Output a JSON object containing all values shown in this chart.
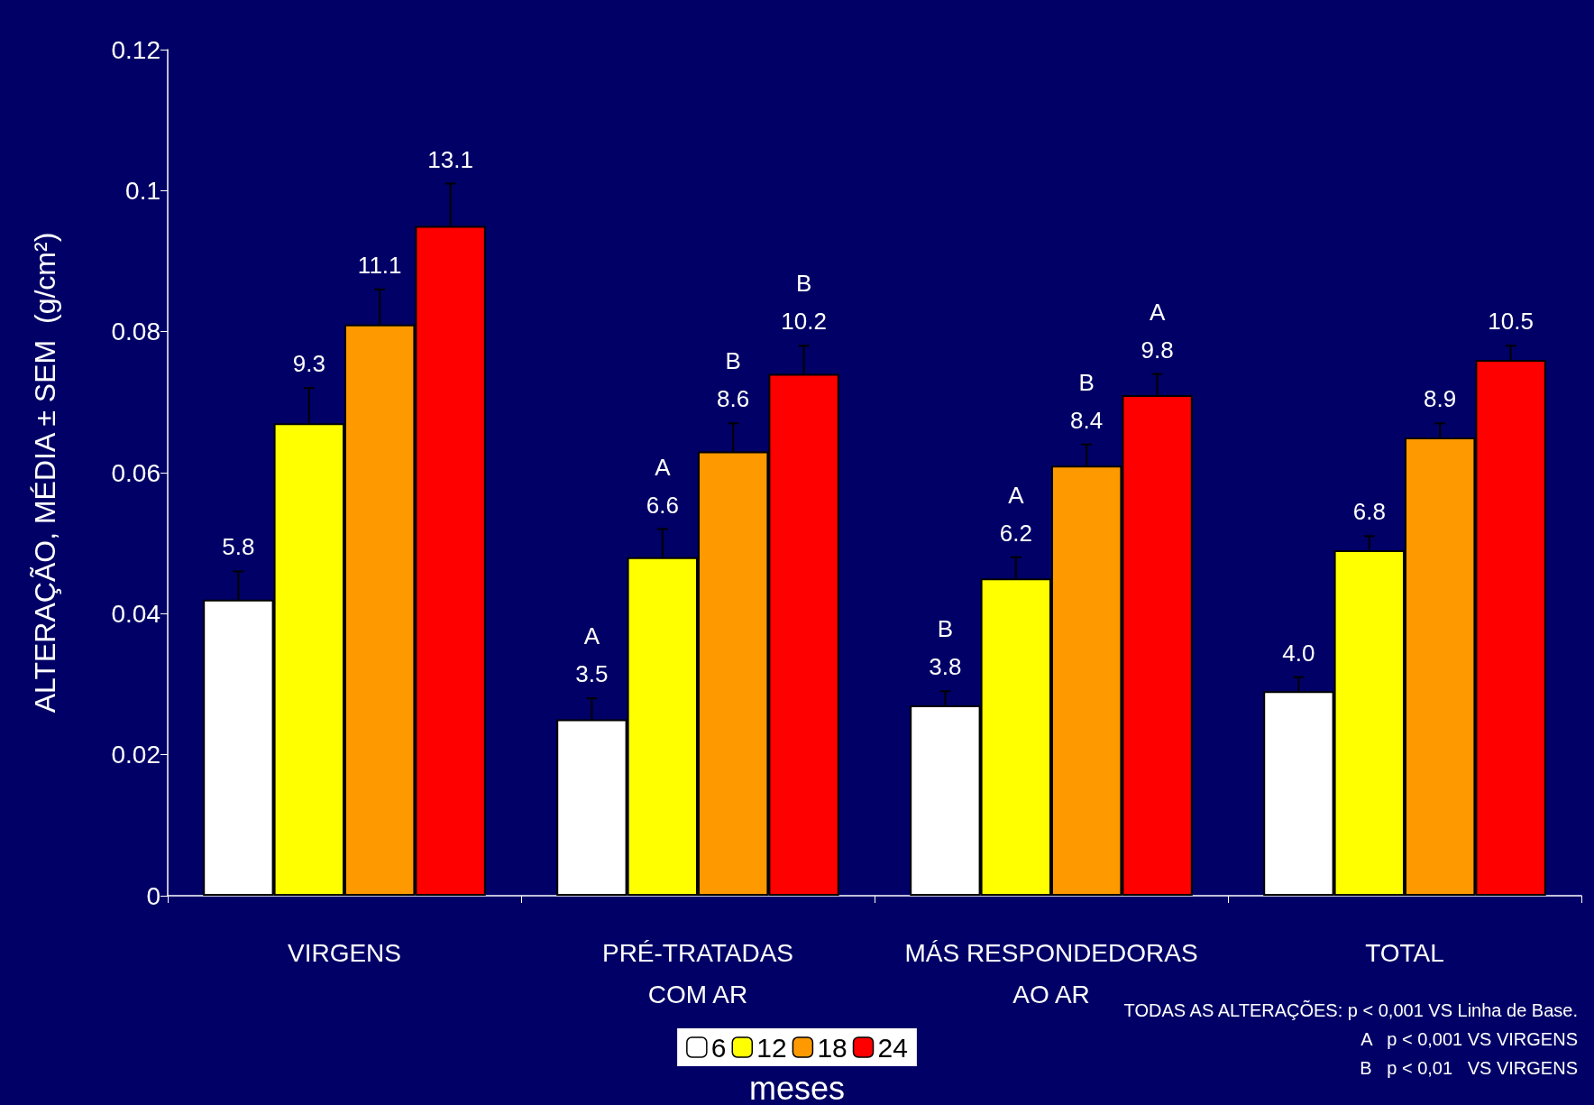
{
  "chart_data": {
    "type": "bar",
    "ylabel": "ALTERAÇÃO, MÉDIA ± SEM  (g/cm²)",
    "legend_title": "meses",
    "categories": [
      "VIRGENS",
      "PRÉ-TRATADAS\nCOM AR",
      "MÁS RESPONDEDORAS\nAO AR",
      "TOTAL"
    ],
    "series": [
      {
        "name": "6",
        "color": "#ffffff",
        "values": [
          0.042,
          0.025,
          0.027,
          0.029
        ],
        "errors": [
          [
            0.042,
            0.046
          ],
          [
            0.025,
            0.028
          ],
          [
            0.027,
            0.029
          ],
          [
            0.029,
            0.031
          ]
        ]
      },
      {
        "name": "12",
        "color": "#ffff00",
        "values": [
          0.067,
          0.048,
          0.045,
          0.049
        ],
        "errors": [
          [
            0.067,
            0.072
          ],
          [
            0.048,
            0.052
          ],
          [
            0.045,
            0.048
          ],
          [
            0.049,
            0.051
          ]
        ]
      },
      {
        "name": "18",
        "color": "#ff9900",
        "values": [
          0.081,
          0.063,
          0.061,
          0.065
        ],
        "errors": [
          [
            0.081,
            0.086
          ],
          [
            0.063,
            0.067
          ],
          [
            0.061,
            0.064
          ],
          [
            0.065,
            0.067
          ]
        ]
      },
      {
        "name": "24",
        "color": "#ff0000",
        "values": [
          0.095,
          0.074,
          0.071,
          0.076
        ],
        "errors": [
          [
            0.095,
            0.101
          ],
          [
            0.074,
            0.078
          ],
          [
            0.071,
            0.074
          ],
          [
            0.076,
            0.078
          ]
        ]
      }
    ],
    "ylim": [
      0,
      0.12
    ],
    "yticks": [
      0,
      0.02,
      0.04,
      0.06,
      0.08,
      0.1,
      0.12
    ],
    "legend": "bottom",
    "grid": false,
    "annotations": [
      "5.8",
      "9.3",
      "11.1",
      "13.1",
      "A\n3.5",
      "A\n6.6",
      "B\n8.6",
      "B\n10.2",
      "B\n3.8",
      "A\n6.2",
      "B\n8.4",
      "A\n9.8",
      "4.0",
      "6.8",
      "8.9",
      "10.5",
      "TODAS AS ALTERAÇÕES: p < 0,001 VS Linha de Base.",
      "A   p < 0,001 VS VIRGENS",
      "B   p < 0,01   VS VIRGENS"
    ]
  }
}
